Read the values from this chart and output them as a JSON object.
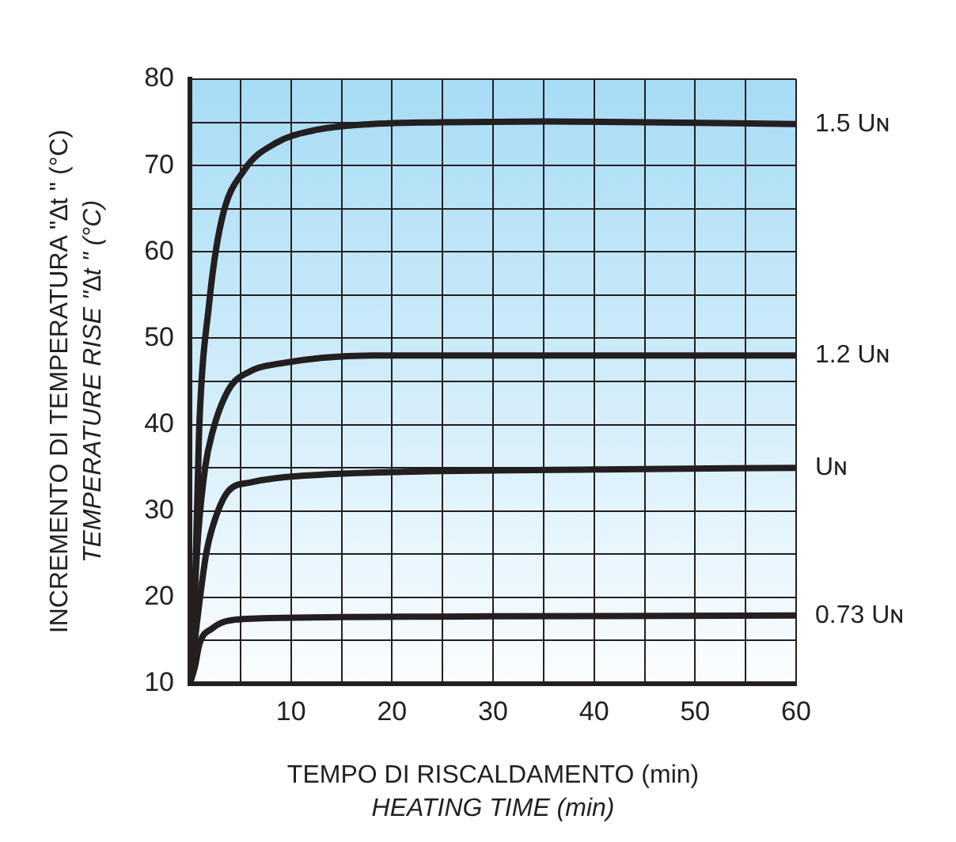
{
  "chart_data": {
    "type": "line",
    "xlabel": [
      "TEMPO DI RISCALDAMENTO (min)",
      "HEATING TIME (min)"
    ],
    "ylabel": [
      "INCREMENTO DI TEMPERATURA \"∆t \" (°C)",
      "TEMPERATURE RISE \"∆t \" (°C)"
    ],
    "xlim": [
      0,
      60
    ],
    "xticks": [
      {
        "value": 0,
        "label": null
      },
      {
        "value": 5,
        "label": null
      },
      10,
      {
        "value": 15,
        "label": null
      },
      20,
      {
        "value": 25,
        "label": null
      },
      30,
      {
        "value": 35,
        "label": null
      },
      40,
      {
        "value": 45,
        "label": null
      },
      50,
      {
        "value": 55,
        "label": null
      },
      60
    ],
    "ylim": [
      10,
      80
    ],
    "yticks": [
      10,
      {
        "value": 15,
        "label": null
      },
      20,
      {
        "value": 25,
        "label": null
      },
      30,
      {
        "value": 35,
        "label": null
      },
      40,
      {
        "value": 45,
        "label": null
      },
      50,
      {
        "value": 55,
        "label": null
      },
      60,
      {
        "value": 65,
        "label": null
      },
      70,
      {
        "value": 75,
        "label": null
      },
      80
    ],
    "grid": true,
    "legend": false,
    "marker": "none",
    "line_style": "solid",
    "series": [
      {
        "name": "1.5 Uɴ",
        "color": "#231f20",
        "x": [
          0,
          0.5,
          0.9,
          1.9,
          3.1,
          5.4,
          8.5,
          12,
          18,
          25,
          35,
          45,
          60
        ],
        "values": [
          10,
          21,
          39,
          54,
          63.5,
          69.5,
          72.6,
          74,
          74.8,
          75,
          75.1,
          75,
          74.8
        ]
      },
      {
        "name": "1.2 Uɴ",
        "color": "#231f20",
        "x": [
          0,
          0.8,
          1.5,
          2.2,
          3.8,
          6,
          8.5,
          18,
          30,
          60
        ],
        "values": [
          10,
          27,
          35,
          39,
          44,
          46.2,
          47,
          48,
          48,
          48
        ]
      },
      {
        "name": "Uɴ",
        "color": "#231f20",
        "x": [
          0,
          1,
          1.6,
          2.2,
          3.8,
          6,
          8.5,
          20,
          40,
          60
        ],
        "values": [
          10,
          20,
          25,
          28,
          32.3,
          33.3,
          33.8,
          34.5,
          34.8,
          35
        ]
      },
      {
        "name": "0.73 Uɴ",
        "color": "#231f20",
        "x": [
          0,
          0.5,
          0.94,
          2.2,
          3.8,
          8,
          30,
          60
        ],
        "values": [
          10,
          12,
          14.6,
          16.4,
          17.3,
          17.6,
          17.8,
          17.9
        ]
      }
    ]
  }
}
